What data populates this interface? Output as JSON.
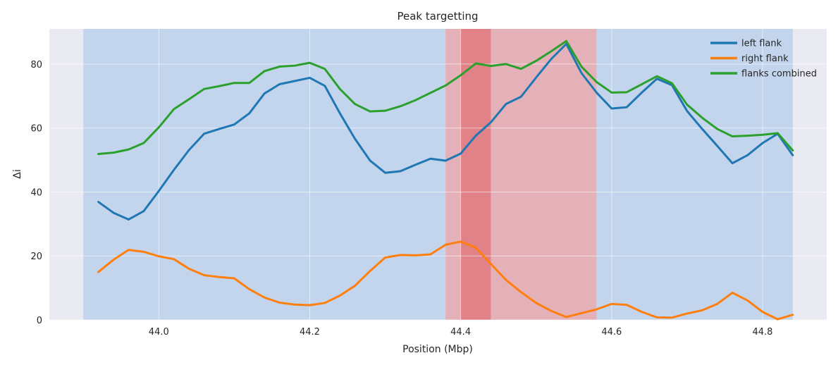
{
  "chart_data": {
    "type": "line",
    "title": "Peak targetting",
    "xlabel": "Position (Mbp)",
    "ylabel": "Δi",
    "xlim": [
      43.855,
      44.885
    ],
    "ylim": [
      0,
      91
    ],
    "xticks": [
      44.0,
      44.2,
      44.4,
      44.6,
      44.8
    ],
    "xtick_labels": [
      "44.0",
      "44.2",
      "44.4",
      "44.6",
      "44.8"
    ],
    "yticks": [
      0,
      20,
      40,
      60,
      80
    ],
    "ytick_labels": [
      "0",
      "20",
      "40",
      "60",
      "80"
    ],
    "grid": true,
    "legend_position": "top-right",
    "colors": {
      "background": "#eaeaf2",
      "grid": "#ffffff",
      "blue_region": "#a9c6e7",
      "red_region": "#f0a4a8",
      "red_core": "#e07a7f"
    },
    "regions": [
      {
        "x0": 43.9,
        "x1": 44.84,
        "color": "#a9c6e7",
        "opacity": 0.6
      },
      {
        "x0": 44.38,
        "x1": 44.58,
        "color": "#f0a4a8",
        "opacity": 0.75
      },
      {
        "x0": 44.4,
        "x1": 44.44,
        "color": "#e07a7f",
        "opacity": 0.85
      }
    ],
    "x": [
      43.92,
      43.94,
      43.96,
      43.98,
      44.0,
      44.02,
      44.04,
      44.06,
      44.08,
      44.1,
      44.12,
      44.14,
      44.16,
      44.18,
      44.2,
      44.22,
      44.24,
      44.26,
      44.28,
      44.3,
      44.32,
      44.34,
      44.36,
      44.38,
      44.4,
      44.42,
      44.44,
      44.46,
      44.48,
      44.5,
      44.52,
      44.54,
      44.56,
      44.58,
      44.6,
      44.62,
      44.64,
      44.66,
      44.68,
      44.7,
      44.72,
      44.74,
      44.76,
      44.78,
      44.8,
      44.82,
      44.84
    ],
    "series": [
      {
        "name": "left flank",
        "color": "#1f77b4",
        "values": [
          36.9,
          33.5,
          31.4,
          34.0,
          40.3,
          46.9,
          53.1,
          58.2,
          59.7,
          61.1,
          64.6,
          70.8,
          73.7,
          74.7,
          75.7,
          73.2,
          64.6,
          56.6,
          49.8,
          46.0,
          46.5,
          48.5,
          50.4,
          49.8,
          52.0,
          57.6,
          61.8,
          67.5,
          69.8,
          75.8,
          81.6,
          86.3,
          77.2,
          71.1,
          66.1,
          66.5,
          71.1,
          75.4,
          73.4,
          65.3,
          59.7,
          54.4,
          49.0,
          51.5,
          55.3,
          58.2,
          51.5
        ]
      },
      {
        "name": "right flank",
        "color": "#ff7f0e",
        "values": [
          15.0,
          18.8,
          21.9,
          21.3,
          19.9,
          19.0,
          16.0,
          14.0,
          13.4,
          13.0,
          9.6,
          7.0,
          5.4,
          4.8,
          4.6,
          5.3,
          7.6,
          10.7,
          15.3,
          19.5,
          20.3,
          20.2,
          20.5,
          23.5,
          24.5,
          22.6,
          17.5,
          12.5,
          8.7,
          5.3,
          2.8,
          0.9,
          2.1,
          3.3,
          5.0,
          4.7,
          2.5,
          0.8,
          0.7,
          2.0,
          3.0,
          5.0,
          8.5,
          6.1,
          2.5,
          0.2,
          1.6
        ]
      },
      {
        "name": "flanks combined",
        "color": "#2ca02c",
        "values": [
          51.9,
          52.3,
          53.3,
          55.3,
          60.2,
          65.9,
          69.0,
          72.2,
          73.1,
          74.1,
          74.1,
          77.8,
          79.2,
          79.5,
          80.4,
          78.5,
          72.2,
          67.5,
          65.2,
          65.4,
          66.8,
          68.7,
          71.0,
          73.3,
          76.5,
          80.2,
          79.4,
          80.0,
          78.5,
          81.0,
          84.0,
          87.2,
          79.2,
          74.4,
          71.1,
          71.2,
          73.7,
          76.2,
          74.0,
          67.3,
          63.2,
          59.7,
          57.4,
          57.6,
          57.9,
          58.4,
          53.0
        ]
      }
    ]
  }
}
